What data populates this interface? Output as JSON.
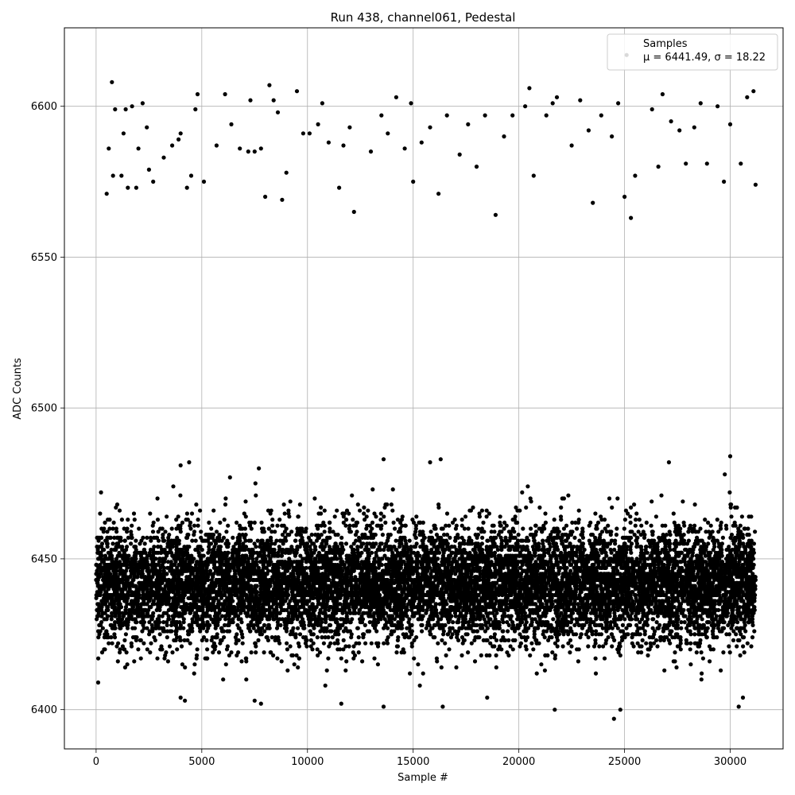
{
  "chart_data": {
    "type": "scatter",
    "title": "Run 438, channel061, Pedestal",
    "xlabel": "Sample #",
    "ylabel": "ADC Counts",
    "xlim": [
      -1500,
      32500
    ],
    "ylim": [
      6387,
      6626
    ],
    "xticks": [
      0,
      5000,
      10000,
      15000,
      20000,
      25000,
      30000
    ],
    "yticks": [
      6400,
      6450,
      6500,
      6550,
      6600
    ],
    "grid": true,
    "legend": {
      "placement": "top-right",
      "entries": [
        {
          "label": "Samples",
          "stats": "μ = 6441.49, σ = 18.22"
        }
      ]
    },
    "marker_color": "#000000",
    "series": [
      {
        "name": "Samples",
        "n_samples": 31200,
        "core_band": {
          "center": 6441.5,
          "typical_range": [
            6415,
            6472
          ]
        },
        "outliers_high": [
          [
            500,
            6571
          ],
          [
            600,
            6586
          ],
          [
            750,
            6608
          ],
          [
            800,
            6577
          ],
          [
            900,
            6599
          ],
          [
            1200,
            6577
          ],
          [
            1300,
            6591
          ],
          [
            1400,
            6599
          ],
          [
            1500,
            6573
          ],
          [
            1700,
            6600
          ],
          [
            1900,
            6573
          ],
          [
            2000,
            6586
          ],
          [
            2200,
            6601
          ],
          [
            2400,
            6593
          ],
          [
            2500,
            6579
          ],
          [
            2700,
            6575
          ],
          [
            3200,
            6583
          ],
          [
            3600,
            6587
          ],
          [
            3900,
            6589
          ],
          [
            4000,
            6591
          ],
          [
            4300,
            6573
          ],
          [
            4500,
            6577
          ],
          [
            4700,
            6599
          ],
          [
            4800,
            6604
          ],
          [
            5100,
            6575
          ],
          [
            5700,
            6587
          ],
          [
            6100,
            6604
          ],
          [
            6400,
            6594
          ],
          [
            6800,
            6586
          ],
          [
            7200,
            6585
          ],
          [
            7300,
            6602
          ],
          [
            7500,
            6585
          ],
          [
            7800,
            6586
          ],
          [
            8000,
            6570
          ],
          [
            8200,
            6607
          ],
          [
            8400,
            6602
          ],
          [
            8600,
            6598
          ],
          [
            8800,
            6569
          ],
          [
            9000,
            6578
          ],
          [
            9500,
            6605
          ],
          [
            9800,
            6591
          ],
          [
            10100,
            6591
          ],
          [
            10500,
            6594
          ],
          [
            10700,
            6601
          ],
          [
            11000,
            6588
          ],
          [
            11500,
            6573
          ],
          [
            11700,
            6587
          ],
          [
            12000,
            6593
          ],
          [
            12200,
            6565
          ],
          [
            13000,
            6585
          ],
          [
            13500,
            6597
          ],
          [
            13800,
            6591
          ],
          [
            14200,
            6603
          ],
          [
            14600,
            6586
          ],
          [
            14900,
            6601
          ],
          [
            15000,
            6575
          ],
          [
            15400,
            6588
          ],
          [
            15800,
            6593
          ],
          [
            16200,
            6571
          ],
          [
            16600,
            6597
          ],
          [
            17200,
            6584
          ],
          [
            17600,
            6594
          ],
          [
            18000,
            6580
          ],
          [
            18400,
            6597
          ],
          [
            18900,
            6564
          ],
          [
            19300,
            6590
          ],
          [
            19700,
            6597
          ],
          [
            20300,
            6600
          ],
          [
            20500,
            6606
          ],
          [
            20700,
            6577
          ],
          [
            21300,
            6597
          ],
          [
            21600,
            6601
          ],
          [
            21800,
            6603
          ],
          [
            22500,
            6587
          ],
          [
            22900,
            6602
          ],
          [
            23300,
            6592
          ],
          [
            23500,
            6568
          ],
          [
            23900,
            6597
          ],
          [
            24400,
            6590
          ],
          [
            24700,
            6601
          ],
          [
            25000,
            6570
          ],
          [
            25100,
            6617
          ],
          [
            25300,
            6563
          ],
          [
            25500,
            6577
          ],
          [
            26300,
            6599
          ],
          [
            26600,
            6580
          ],
          [
            26800,
            6604
          ],
          [
            27200,
            6595
          ],
          [
            27600,
            6592
          ],
          [
            27900,
            6581
          ],
          [
            28300,
            6593
          ],
          [
            28600,
            6601
          ],
          [
            28900,
            6581
          ],
          [
            29400,
            6600
          ],
          [
            29700,
            6575
          ],
          [
            30000,
            6594
          ],
          [
            30500,
            6581
          ],
          [
            30800,
            6603
          ],
          [
            31100,
            6605
          ],
          [
            31200,
            6574
          ]
        ],
        "outliers_low": [
          [
            100,
            6409
          ],
          [
            4000,
            6404
          ],
          [
            4200,
            6403
          ],
          [
            7500,
            6403
          ],
          [
            7800,
            6402
          ],
          [
            11600,
            6402
          ],
          [
            13600,
            6401
          ],
          [
            16400,
            6401
          ],
          [
            18500,
            6404
          ],
          [
            21700,
            6400
          ],
          [
            24500,
            6397
          ],
          [
            24800,
            6400
          ],
          [
            30400,
            6401
          ],
          [
            30600,
            6404
          ]
        ],
        "outliers_band_edge": [
          [
            4000,
            6481
          ],
          [
            4400,
            6482
          ],
          [
            7700,
            6480
          ],
          [
            13600,
            6483
          ],
          [
            15800,
            6482
          ],
          [
            16300,
            6483
          ],
          [
            27100,
            6482
          ],
          [
            30000,
            6484
          ]
        ]
      }
    ]
  }
}
